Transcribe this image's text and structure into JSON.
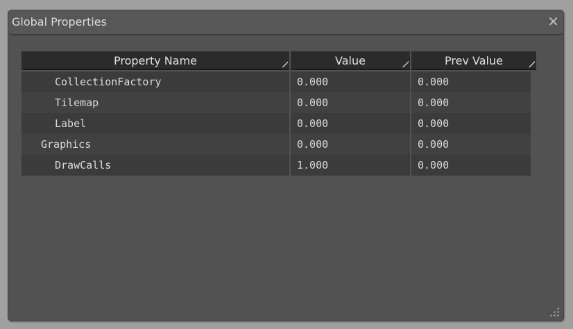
{
  "window": {
    "title": "Global Properties",
    "close_icon": "close-icon"
  },
  "table": {
    "headers": [
      "Property Name",
      "Value",
      "Prev Value"
    ],
    "rows": [
      {
        "name": "CollectionFactory",
        "indent": 2,
        "value": "0.000",
        "prev": "0.000"
      },
      {
        "name": "Tilemap",
        "indent": 2,
        "value": "0.000",
        "prev": "0.000"
      },
      {
        "name": "Label",
        "indent": 2,
        "value": "0.000",
        "prev": "0.000"
      },
      {
        "name": "Graphics",
        "indent": 1,
        "value": "0.000",
        "prev": "0.000"
      },
      {
        "name": "DrawCalls",
        "indent": 2,
        "value": "1.000",
        "prev": "0.000"
      }
    ]
  }
}
